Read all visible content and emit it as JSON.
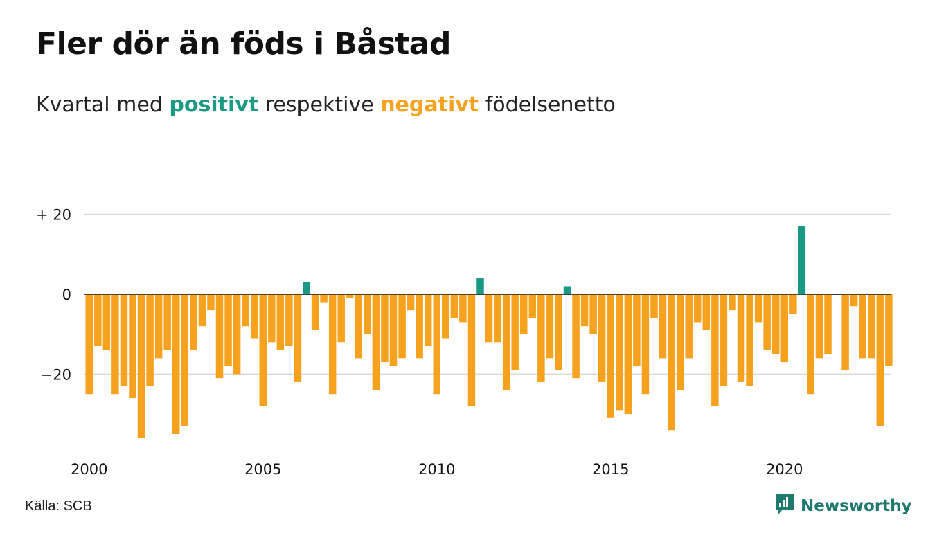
{
  "title": "Fler dör än föds i Båstad",
  "subtitle": {
    "part1": "Kvartal med ",
    "positive": "positivt",
    "part2": " respektive ",
    "negative": "negativt",
    "part3": " födelsenetto"
  },
  "colors": {
    "positive": "#1a9985",
    "negative": "#f6a21e",
    "grid": "#d9d9d9"
  },
  "chart_data": {
    "type": "bar",
    "title": "Fler dör än föds i Båstad",
    "subtitle": "Kvartal med positivt respektive negativt födelsenetto",
    "x_start": "2000 Q1",
    "frequency": "quarterly",
    "x_tick_labels": [
      "2000",
      "2005",
      "2010",
      "2015",
      "2020"
    ],
    "y_tick_labels": [
      "+ 20",
      "0",
      "−20"
    ],
    "y_ticks": [
      20,
      0,
      -20
    ],
    "ylim": [
      -38,
      24
    ],
    "grid": true,
    "values": [
      -25,
      -13,
      -14,
      -25,
      -23,
      -26,
      -36,
      -23,
      -16,
      -14,
      -35,
      -33,
      -14,
      -8,
      -4,
      -21,
      -18,
      -20,
      -8,
      -11,
      -28,
      -12,
      -14,
      -13,
      -22,
      3,
      -9,
      -2,
      -25,
      -12,
      -1,
      -16,
      -10,
      -24,
      -17,
      -18,
      -16,
      -4,
      -16,
      -13,
      -25,
      -11,
      -6,
      -7,
      -28,
      4,
      -12,
      -12,
      -24,
      -19,
      -10,
      -6,
      -22,
      -16,
      -19,
      2,
      -21,
      -8,
      -10,
      -22,
      -31,
      -29,
      -30,
      -18,
      -25,
      -6,
      -16,
      -34,
      -24,
      -16,
      -7,
      -9,
      -28,
      -23,
      -4,
      -22,
      -23,
      -7,
      -14,
      -15,
      -17,
      -5,
      17,
      -25,
      -16,
      -15,
      0,
      -19,
      -3,
      -16,
      -16,
      -33,
      -18
    ]
  },
  "footer": {
    "source": "Källa: SCB",
    "brand": "Newsworthy",
    "brand_icon": "newsworthy-logo-icon"
  }
}
